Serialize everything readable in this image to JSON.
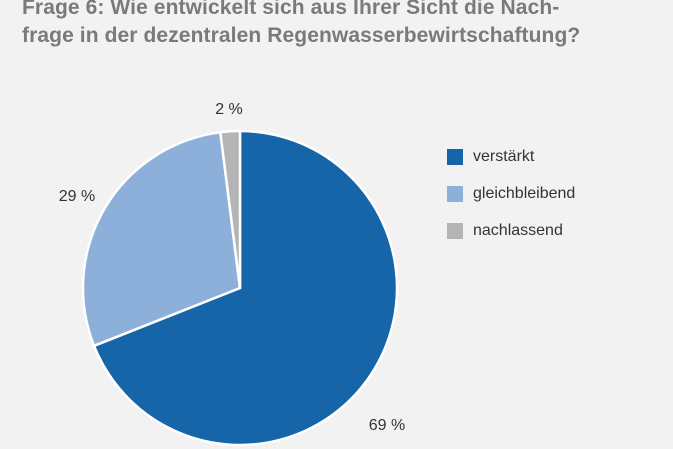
{
  "title_lines": [
    "Frage 6: Wie entwickelt sich aus Ihrer Sicht die Nach-",
    "frage in der dezentralen Regenwasserbewirtschaftung?"
  ],
  "colors": {
    "background": "#f2f2f2",
    "verstaerkt": "#1565a8",
    "gleichbleibend": "#8db0db",
    "nachlassend": "#b4b4b4"
  },
  "chart_data": {
    "type": "pie",
    "title": "Frage 6: Wie entwickelt sich aus Ihrer Sicht die Nachfrage in der dezentralen Regenwasserbewirtschaftung?",
    "legend_position": "right",
    "slices": [
      {
        "name": "verstärkt",
        "value": 69,
        "label": "69 %",
        "color": "#1565a8"
      },
      {
        "name": "gleichbleibend",
        "value": 29,
        "label": "29 %",
        "color": "#8db0db"
      },
      {
        "name": "nachlassend",
        "value": 2,
        "label": "2 %",
        "color": "#b4b4b4"
      }
    ]
  }
}
